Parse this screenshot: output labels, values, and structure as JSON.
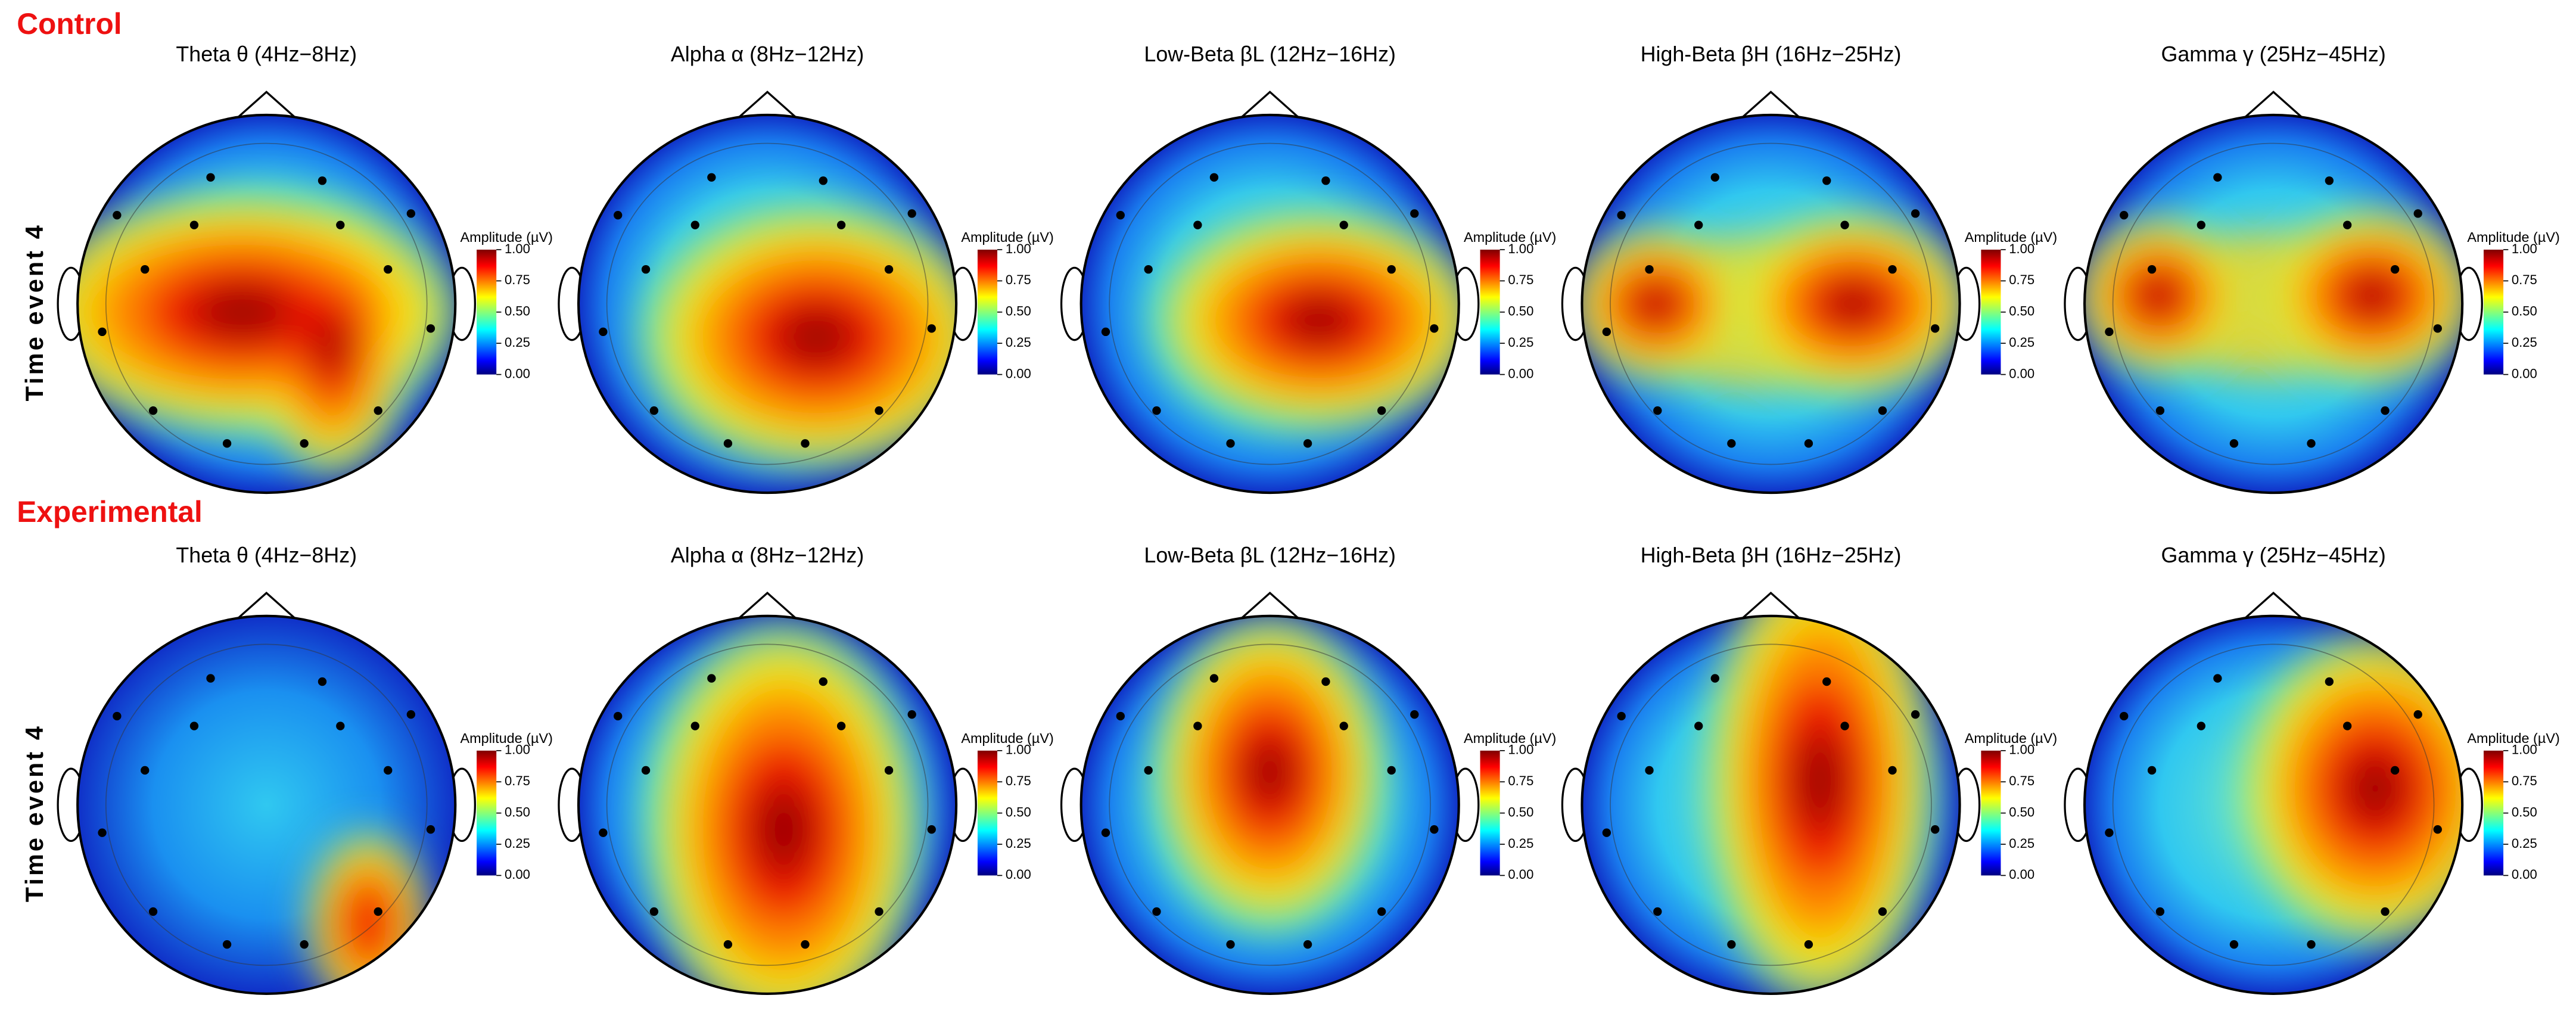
{
  "figure": {
    "groups": [
      {
        "label": "Control",
        "row_label": "Time event 4"
      },
      {
        "label": "Experimental",
        "row_label": "Time event 4"
      }
    ],
    "bands": [
      "Theta θ (4Hz−8Hz)",
      "Alpha α (8Hz−12Hz)",
      "Low-Beta βL (12Hz−16Hz)",
      "High-Beta βH (16Hz−25Hz)",
      "Gamma γ (25Hz−45Hz)"
    ],
    "colorbar": {
      "label": "Amplitude (µV)",
      "ticks": [
        {
          "value": 0,
          "label": "0.00"
        },
        {
          "value": 0.25,
          "label": "0.25"
        },
        {
          "value": 0.5,
          "label": "0.50"
        },
        {
          "value": 0.75,
          "label": "0.75"
        },
        {
          "value": 1,
          "label": "1.00"
        }
      ]
    }
  }
}
